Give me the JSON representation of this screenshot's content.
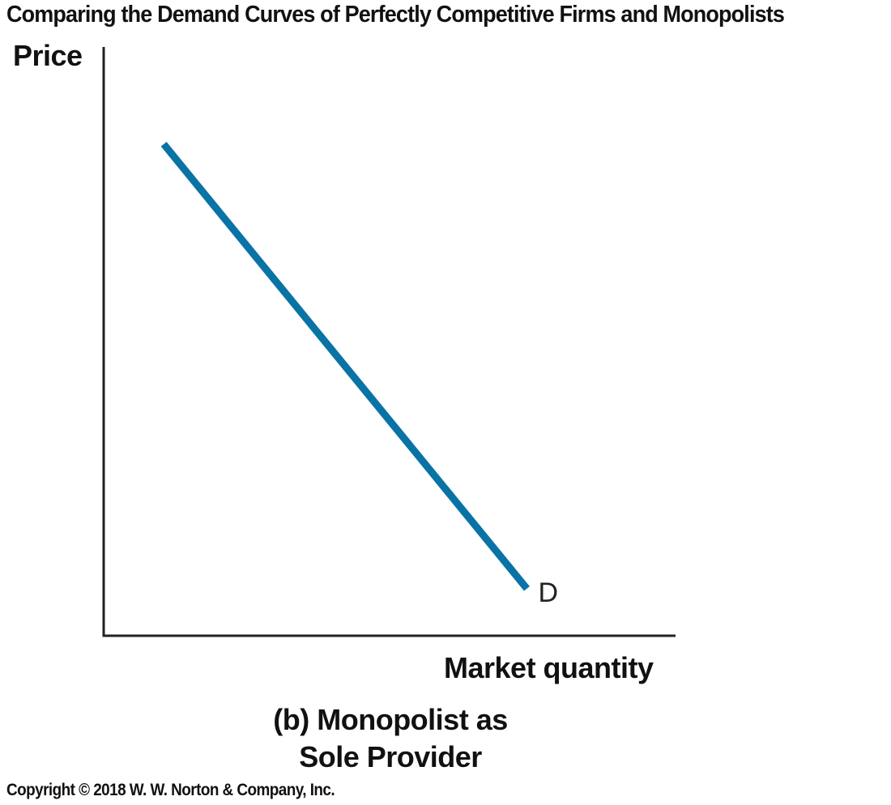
{
  "header": {
    "title": "Comparing the Demand Curves of Perfectly Competitive Firms and Monopolists"
  },
  "footer": {
    "copyright": "Copyright © 2018 W. W. Norton & Company, Inc."
  },
  "colors": {
    "curve": "#0a73a6",
    "axis": "#222222"
  },
  "chart_data": {
    "type": "line",
    "title": "(b) Monopolist as Sole Provider",
    "title_lines": [
      "(b) Monopolist as",
      "Sole Provider"
    ],
    "xlabel": "Market quantity",
    "ylabel": "Price",
    "xlim": [
      0,
      100
    ],
    "ylim": [
      0,
      100
    ],
    "grid": false,
    "ticks": false,
    "series": [
      {
        "name": "D",
        "x": [
          10.5,
          74
        ],
        "y": [
          83.5,
          8
        ]
      }
    ]
  }
}
